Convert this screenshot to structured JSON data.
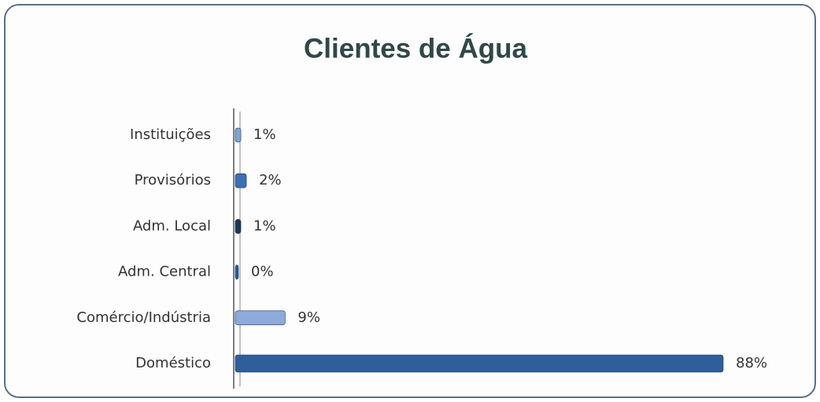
{
  "chart_data": {
    "type": "hbar",
    "title": "Clientes de Água",
    "categories": [
      "Instituições",
      "Provisórios",
      "Adm. Local",
      "Adm. Central",
      "Comércio/Indústria",
      "Doméstico"
    ],
    "values": [
      1,
      2,
      1,
      0,
      9,
      88
    ],
    "value_labels": [
      "1%",
      "2%",
      "1%",
      "0%",
      "9%",
      "88%"
    ],
    "colors": [
      "#7fa6cf",
      "#3c6fb4",
      "#1f3552",
      "#2b5d9c",
      "#8eaadb",
      "#2f5e9c"
    ]
  }
}
